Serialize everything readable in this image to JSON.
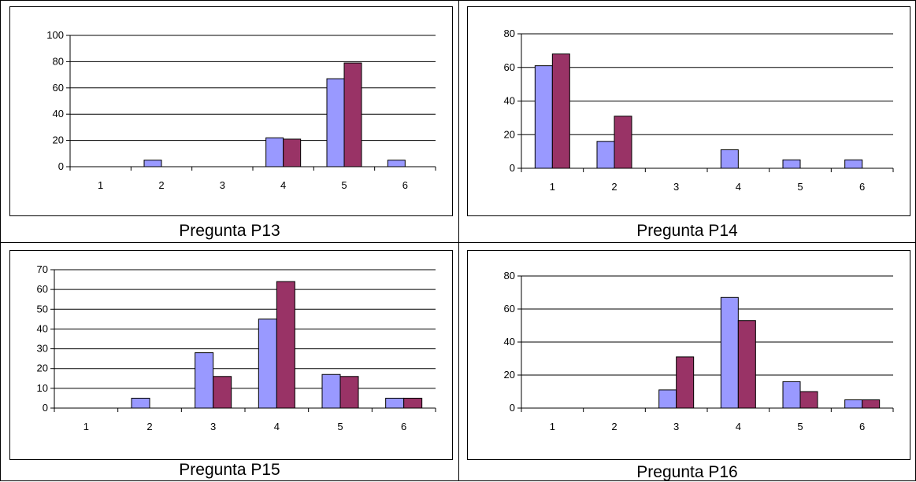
{
  "colors": {
    "series_a": "#9999ff",
    "series_b": "#993366",
    "axis": "#000000",
    "grid": "#000000"
  },
  "chart_data": [
    {
      "type": "bar",
      "caption": "Pregunta P13",
      "categories": [
        "1",
        "2",
        "3",
        "4",
        "5",
        "6"
      ],
      "series": [
        {
          "values": [
            0,
            5,
            0,
            22,
            67,
            5
          ]
        },
        {
          "values": [
            0,
            0,
            0,
            21,
            79,
            0
          ]
        }
      ],
      "ylim": [
        0,
        100
      ],
      "yticks": [
        0,
        20,
        40,
        60,
        80,
        100
      ],
      "grid": true
    },
    {
      "type": "bar",
      "caption": "Pregunta P14",
      "categories": [
        "1",
        "2",
        "3",
        "4",
        "5",
        "6"
      ],
      "series": [
        {
          "values": [
            61,
            16,
            0,
            11,
            5,
            5
          ]
        },
        {
          "values": [
            68,
            31,
            0,
            0,
            0,
            0
          ]
        }
      ],
      "ylim": [
        0,
        80
      ],
      "yticks": [
        0,
        20,
        40,
        60,
        80
      ],
      "grid": true
    },
    {
      "type": "bar",
      "caption": "Pregunta P15",
      "categories": [
        "1",
        "2",
        "3",
        "4",
        "5",
        "6"
      ],
      "series": [
        {
          "values": [
            0,
            5,
            28,
            45,
            17,
            5
          ]
        },
        {
          "values": [
            0,
            0,
            16,
            64,
            16,
            5
          ]
        }
      ],
      "ylim": [
        0,
        70
      ],
      "yticks": [
        0,
        10,
        20,
        30,
        40,
        50,
        60,
        70
      ],
      "grid": true
    },
    {
      "type": "bar",
      "caption": "Pregunta P16",
      "categories": [
        "1",
        "2",
        "3",
        "4",
        "5",
        "6"
      ],
      "series": [
        {
          "values": [
            0,
            0,
            11,
            67,
            16,
            5
          ]
        },
        {
          "values": [
            0,
            0,
            31,
            53,
            10,
            5
          ]
        }
      ],
      "ylim": [
        0,
        80
      ],
      "yticks": [
        0,
        20,
        40,
        60,
        80
      ],
      "grid": true
    }
  ]
}
